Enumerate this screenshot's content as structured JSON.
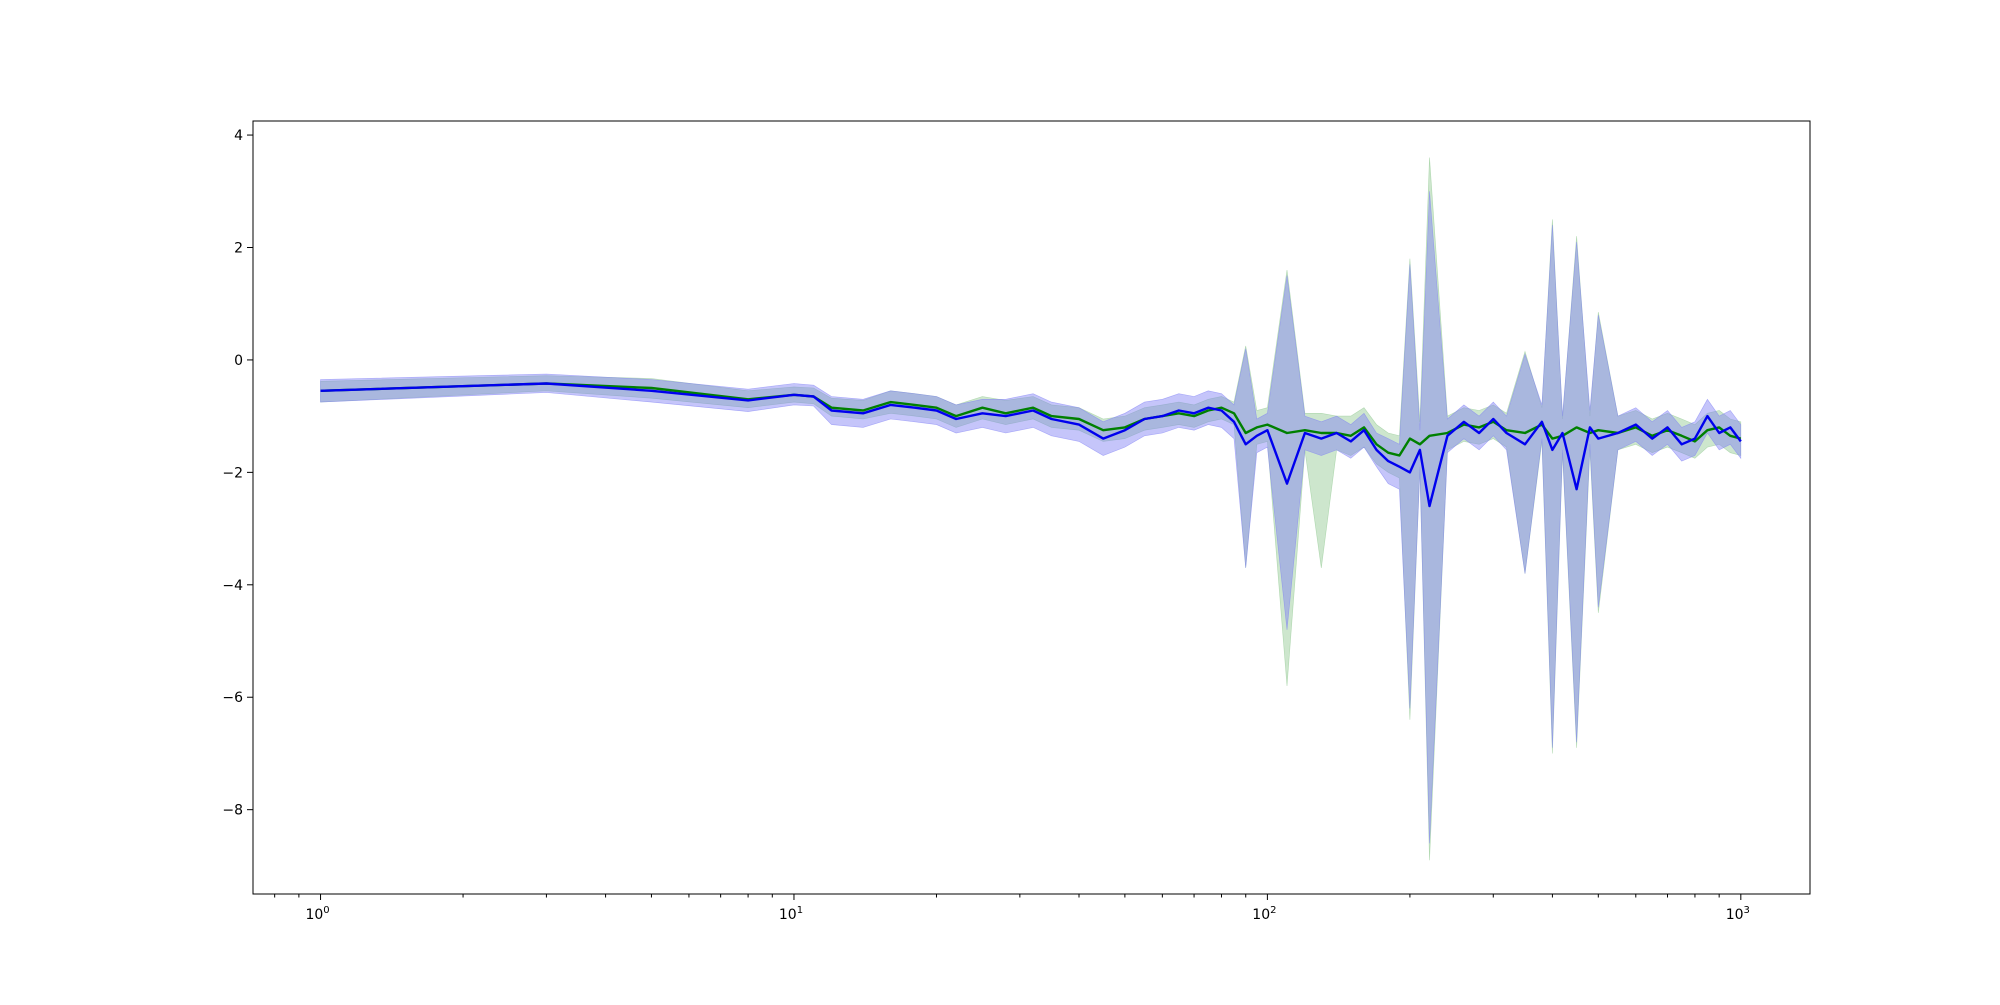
{
  "chart_data": {
    "type": "line",
    "title": "",
    "xlabel": "",
    "ylabel": "",
    "xscale": "log",
    "xlim": [
      0.72,
      1400
    ],
    "ylim": [
      -9.5,
      4.25
    ],
    "grid": false,
    "legend": "none",
    "x_ticks": [
      {
        "value": 1,
        "base": "10",
        "exp": "0"
      },
      {
        "value": 10,
        "base": "10",
        "exp": "1"
      },
      {
        "value": 100,
        "base": "10",
        "exp": "2"
      },
      {
        "value": 1000,
        "base": "10",
        "exp": "3"
      }
    ],
    "y_ticks": [
      {
        "value": 4,
        "label": "4"
      },
      {
        "value": 2,
        "label": "2"
      },
      {
        "value": 0,
        "label": "0"
      },
      {
        "value": -2,
        "label": "−2"
      },
      {
        "value": -4,
        "label": "−4"
      },
      {
        "value": -6,
        "label": "−6"
      },
      {
        "value": -8,
        "label": "−8"
      }
    ],
    "series": [
      {
        "color": "#008000",
        "band_color": "#90c890",
        "band_opacity": 0.45,
        "x": [
          1,
          3,
          5,
          8,
          10,
          11,
          12,
          14,
          16,
          18,
          20,
          22,
          25,
          28,
          32,
          35,
          40,
          45,
          50,
          55,
          60,
          65,
          70,
          75,
          80,
          85,
          90,
          95,
          100,
          110,
          120,
          130,
          140,
          150,
          160,
          170,
          180,
          190,
          200,
          210,
          220,
          240,
          260,
          280,
          300,
          320,
          350,
          380,
          400,
          420,
          450,
          480,
          500,
          550,
          600,
          650,
          700,
          750,
          800,
          850,
          900,
          950,
          1000
        ],
        "y": [
          -0.55,
          -0.42,
          -0.5,
          -0.7,
          -0.62,
          -0.65,
          -0.85,
          -0.9,
          -0.75,
          -0.8,
          -0.85,
          -1.0,
          -0.85,
          -0.95,
          -0.85,
          -1.0,
          -1.05,
          -1.25,
          -1.2,
          -1.05,
          -1.0,
          -0.95,
          -1.0,
          -0.9,
          -0.85,
          -0.95,
          -1.3,
          -1.2,
          -1.15,
          -1.3,
          -1.25,
          -1.3,
          -1.3,
          -1.35,
          -1.2,
          -1.5,
          -1.65,
          -1.7,
          -1.4,
          -1.5,
          -1.35,
          -1.3,
          -1.15,
          -1.2,
          -1.1,
          -1.25,
          -1.3,
          -1.15,
          -1.4,
          -1.35,
          -1.2,
          -1.3,
          -1.25,
          -1.3,
          -1.2,
          -1.35,
          -1.25,
          -1.35,
          -1.45,
          -1.25,
          -1.2,
          -1.35,
          -1.4
        ],
        "band_low": [
          -0.75,
          -0.55,
          -0.68,
          -0.85,
          -0.75,
          -0.78,
          -1.0,
          -1.05,
          -0.95,
          -1.0,
          -1.05,
          -1.2,
          -1.05,
          -1.15,
          -1.05,
          -1.2,
          -1.25,
          -1.45,
          -1.4,
          -1.25,
          -1.2,
          -1.15,
          -1.2,
          -1.1,
          -1.05,
          -1.15,
          -3.7,
          -1.5,
          -1.45,
          -5.8,
          -1.6,
          -3.7,
          -1.6,
          -1.7,
          -1.55,
          -1.85,
          -2.0,
          -2.1,
          -6.4,
          -1.9,
          -8.9,
          -1.6,
          -1.45,
          -1.5,
          -1.4,
          -1.55,
          -3.8,
          -1.45,
          -7.0,
          -1.65,
          -6.9,
          -1.6,
          -4.5,
          -1.6,
          -1.5,
          -1.65,
          -1.55,
          -1.65,
          -1.75,
          -1.55,
          -1.5,
          -1.65,
          -1.7
        ],
        "band_high": [
          -0.38,
          -0.28,
          -0.33,
          -0.55,
          -0.48,
          -0.5,
          -0.68,
          -0.72,
          -0.55,
          -0.6,
          -0.65,
          -0.8,
          -0.65,
          -0.72,
          -0.65,
          -0.8,
          -0.85,
          -1.05,
          -1.0,
          -0.85,
          -0.8,
          -0.75,
          -0.8,
          -0.7,
          -0.65,
          -0.75,
          0.25,
          -0.9,
          -0.85,
          1.6,
          -0.95,
          -0.95,
          -1.0,
          -1.0,
          -0.85,
          -1.15,
          -1.3,
          -1.35,
          1.8,
          -1.1,
          3.6,
          -1.0,
          -0.85,
          -0.9,
          -0.8,
          -0.95,
          0.15,
          -0.85,
          2.5,
          -1.05,
          2.2,
          -1.0,
          0.85,
          -1.0,
          -0.9,
          -1.05,
          -0.95,
          -1.05,
          -1.15,
          -0.95,
          -0.9,
          -1.05,
          -1.1
        ]
      },
      {
        "color": "#0000ee",
        "band_color": "#7f7ff5",
        "band_opacity": 0.45,
        "x": [
          1,
          3,
          5,
          8,
          10,
          11,
          12,
          14,
          16,
          18,
          20,
          22,
          25,
          28,
          32,
          35,
          40,
          45,
          50,
          55,
          60,
          65,
          70,
          75,
          80,
          85,
          90,
          95,
          100,
          110,
          120,
          130,
          140,
          150,
          160,
          170,
          180,
          190,
          200,
          210,
          220,
          240,
          260,
          280,
          300,
          320,
          350,
          380,
          400,
          420,
          450,
          480,
          500,
          550,
          600,
          650,
          700,
          750,
          800,
          850,
          900,
          950,
          1000
        ],
        "y": [
          -0.55,
          -0.42,
          -0.55,
          -0.72,
          -0.62,
          -0.65,
          -0.9,
          -0.95,
          -0.8,
          -0.85,
          -0.9,
          -1.05,
          -0.95,
          -1.0,
          -0.9,
          -1.05,
          -1.15,
          -1.4,
          -1.25,
          -1.05,
          -1.0,
          -0.9,
          -0.95,
          -0.85,
          -0.9,
          -1.1,
          -1.5,
          -1.35,
          -1.25,
          -2.2,
          -1.3,
          -1.4,
          -1.3,
          -1.45,
          -1.25,
          -1.6,
          -1.8,
          -1.9,
          -2.0,
          -1.6,
          -2.6,
          -1.35,
          -1.1,
          -1.3,
          -1.05,
          -1.3,
          -1.5,
          -1.1,
          -1.6,
          -1.3,
          -2.3,
          -1.2,
          -1.4,
          -1.3,
          -1.15,
          -1.4,
          -1.2,
          -1.5,
          -1.4,
          -1.0,
          -1.3,
          -1.2,
          -1.45
        ],
        "band_low": [
          -0.75,
          -0.58,
          -0.75,
          -0.92,
          -0.8,
          -0.82,
          -1.15,
          -1.2,
          -1.05,
          -1.1,
          -1.15,
          -1.3,
          -1.2,
          -1.3,
          -1.2,
          -1.35,
          -1.45,
          -1.7,
          -1.55,
          -1.35,
          -1.3,
          -1.2,
          -1.25,
          -1.15,
          -1.2,
          -1.4,
          -3.7,
          -1.65,
          -1.55,
          -4.8,
          -1.6,
          -1.7,
          -1.6,
          -1.75,
          -1.55,
          -1.9,
          -2.2,
          -2.3,
          -6.2,
          -1.95,
          -8.6,
          -1.65,
          -1.4,
          -1.6,
          -1.35,
          -1.6,
          -3.8,
          -1.4,
          -6.9,
          -1.6,
          -6.8,
          -1.5,
          -4.4,
          -1.6,
          -1.45,
          -1.7,
          -1.5,
          -1.8,
          -1.7,
          -1.3,
          -1.6,
          -1.5,
          -1.75
        ],
        "band_high": [
          -0.35,
          -0.25,
          -0.35,
          -0.52,
          -0.42,
          -0.45,
          -0.65,
          -0.7,
          -0.55,
          -0.6,
          -0.65,
          -0.8,
          -0.7,
          -0.7,
          -0.6,
          -0.75,
          -0.85,
          -1.1,
          -0.95,
          -0.75,
          -0.7,
          -0.6,
          -0.65,
          -0.55,
          -0.6,
          -0.8,
          0.2,
          -1.05,
          -0.95,
          1.5,
          -1.0,
          -1.1,
          -1.0,
          -1.15,
          -0.95,
          -1.3,
          -1.4,
          -1.5,
          1.7,
          -1.25,
          3.0,
          -1.05,
          -0.8,
          -1.0,
          -0.75,
          -1.0,
          0.1,
          -0.8,
          2.4,
          -1.0,
          2.1,
          -0.9,
          0.8,
          -1.0,
          -0.85,
          -1.1,
          -0.9,
          -1.2,
          -1.1,
          -0.7,
          -1.0,
          -0.9,
          -1.15
        ]
      }
    ]
  }
}
